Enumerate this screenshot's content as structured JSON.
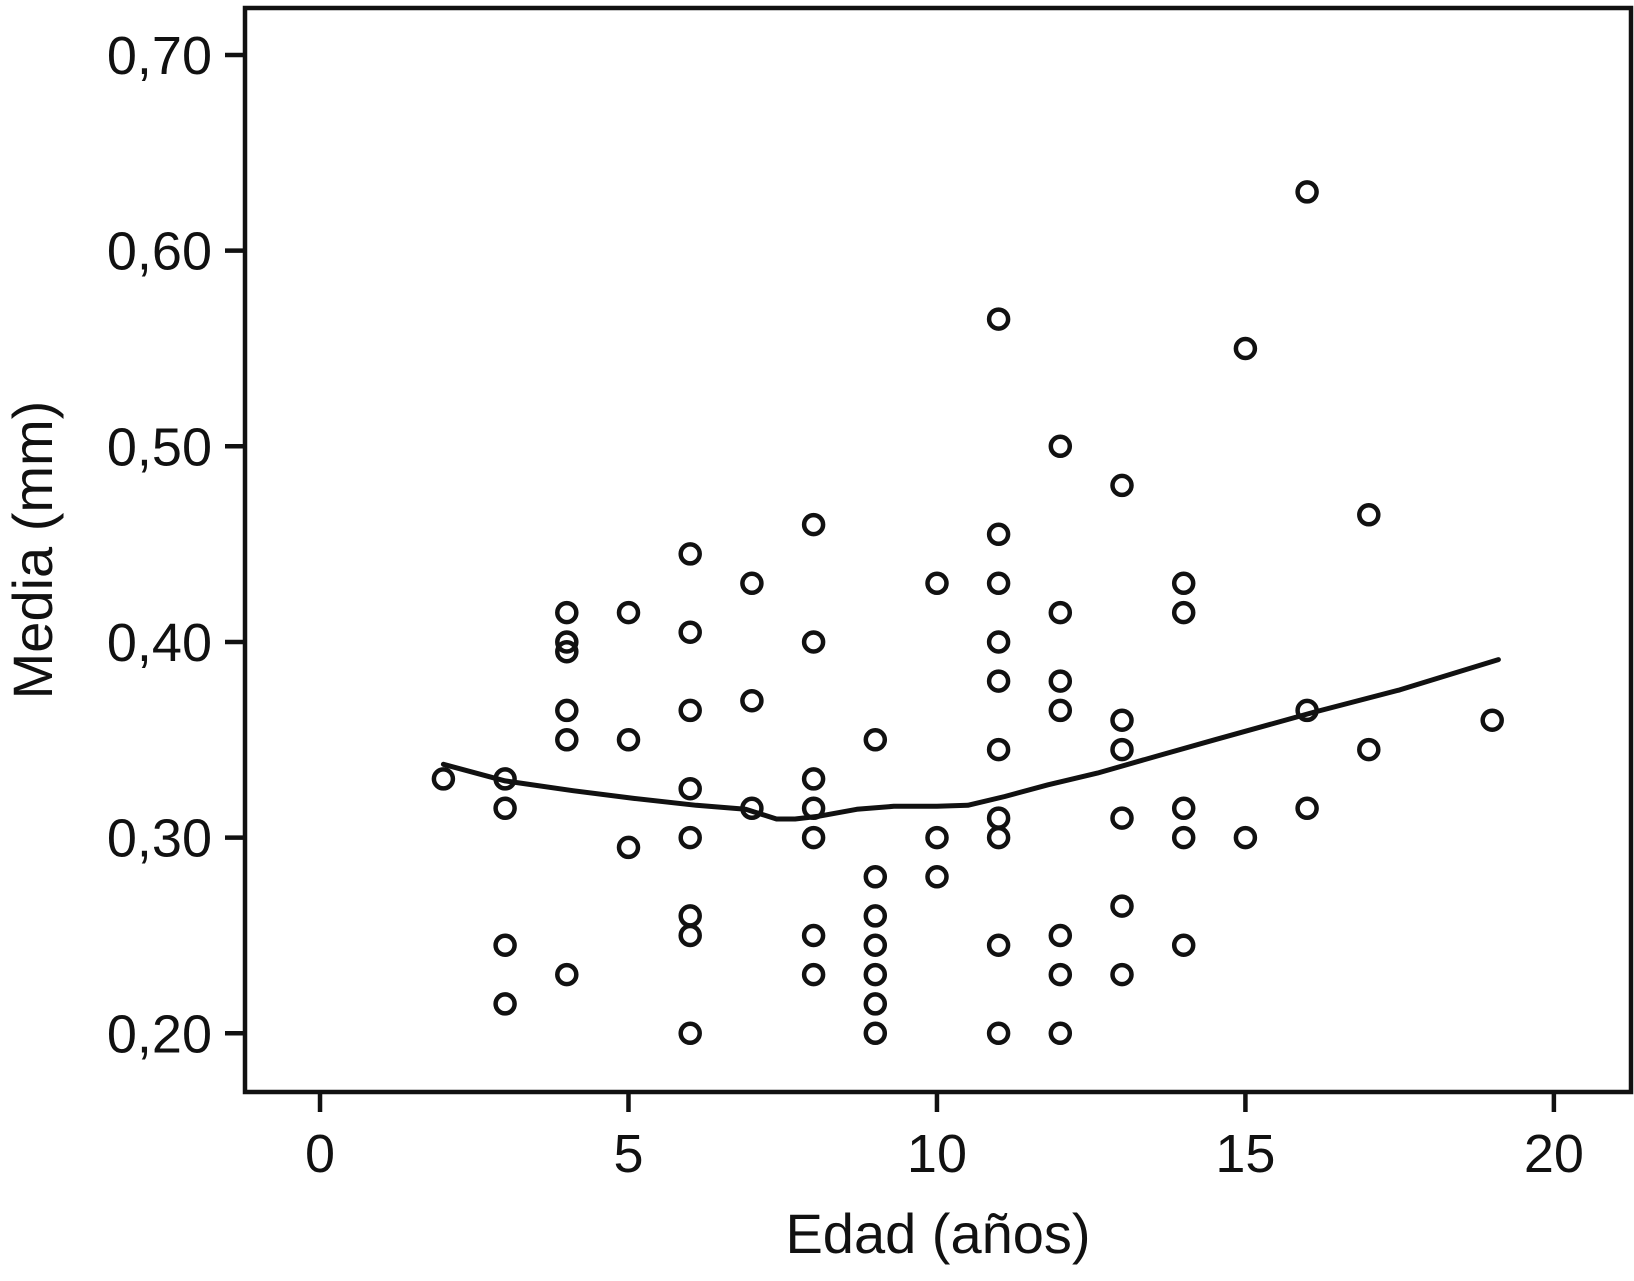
{
  "figure": {
    "background_color": "#ffffff",
    "ink_color": "#111111"
  },
  "chart_data": {
    "type": "scatter",
    "xlabel": "Edad (años)",
    "ylabel": "Media (mm)",
    "x_ticks": [
      0,
      5,
      10,
      15,
      20
    ],
    "x_tick_labels": [
      "0",
      "5",
      "10",
      "15",
      "20"
    ],
    "y_ticks": [
      0.2,
      0.3,
      0.4,
      0.5,
      0.6,
      0.7
    ],
    "y_tick_labels": [
      "0,20",
      "0,30",
      "0,40",
      "0,50",
      "0,60",
      "0,70"
    ],
    "xlim": [
      -1.216,
      21.25
    ],
    "ylim": [
      0.17,
      0.724
    ],
    "grid": false,
    "legend": "none",
    "marker": "open-circle",
    "points": [
      [
        2,
        0.33
      ],
      [
        3,
        0.33
      ],
      [
        3,
        0.315
      ],
      [
        3,
        0.245
      ],
      [
        3,
        0.215
      ],
      [
        4,
        0.415
      ],
      [
        4,
        0.4
      ],
      [
        4,
        0.395
      ],
      [
        4,
        0.365
      ],
      [
        4,
        0.35
      ],
      [
        4,
        0.23
      ],
      [
        5,
        0.415
      ],
      [
        5,
        0.35
      ],
      [
        5,
        0.295
      ],
      [
        6,
        0.445
      ],
      [
        6,
        0.405
      ],
      [
        6,
        0.365
      ],
      [
        6,
        0.325
      ],
      [
        6,
        0.3
      ],
      [
        6,
        0.26
      ],
      [
        6,
        0.25
      ],
      [
        6,
        0.2
      ],
      [
        7,
        0.43
      ],
      [
        7,
        0.37
      ],
      [
        7,
        0.315
      ],
      [
        8,
        0.46
      ],
      [
        8,
        0.4
      ],
      [
        8,
        0.33
      ],
      [
        8,
        0.315
      ],
      [
        8,
        0.3
      ],
      [
        8,
        0.25
      ],
      [
        8,
        0.23
      ],
      [
        9,
        0.35
      ],
      [
        9,
        0.28
      ],
      [
        9,
        0.26
      ],
      [
        9,
        0.245
      ],
      [
        9,
        0.23
      ],
      [
        9,
        0.215
      ],
      [
        9,
        0.2
      ],
      [
        10,
        0.43
      ],
      [
        10,
        0.3
      ],
      [
        10,
        0.28
      ],
      [
        11,
        0.565
      ],
      [
        11,
        0.455
      ],
      [
        11,
        0.43
      ],
      [
        11,
        0.4
      ],
      [
        11,
        0.38
      ],
      [
        11,
        0.345
      ],
      [
        11,
        0.31
      ],
      [
        11,
        0.3
      ],
      [
        11,
        0.245
      ],
      [
        11,
        0.2
      ],
      [
        12,
        0.5
      ],
      [
        12,
        0.415
      ],
      [
        12,
        0.38
      ],
      [
        12,
        0.365
      ],
      [
        12,
        0.25
      ],
      [
        12,
        0.23
      ],
      [
        12,
        0.2
      ],
      [
        13,
        0.48
      ],
      [
        13,
        0.36
      ],
      [
        13,
        0.345
      ],
      [
        13,
        0.31
      ],
      [
        13,
        0.265
      ],
      [
        13,
        0.23
      ],
      [
        14,
        0.43
      ],
      [
        14,
        0.415
      ],
      [
        14,
        0.315
      ],
      [
        14,
        0.3
      ],
      [
        14,
        0.245
      ],
      [
        15,
        0.55
      ],
      [
        15,
        0.3
      ],
      [
        16,
        0.63
      ],
      [
        16,
        0.365
      ],
      [
        16,
        0.315
      ],
      [
        17,
        0.465
      ],
      [
        17,
        0.345
      ],
      [
        19,
        0.36
      ]
    ],
    "trend_line": {
      "description": "smoothed fit line",
      "points": [
        [
          2.0,
          0.3375
        ],
        [
          3.0,
          0.329
        ],
        [
          4.1,
          0.324
        ],
        [
          5.1,
          0.32
        ],
        [
          6.1,
          0.3165
        ],
        [
          6.9,
          0.3145
        ],
        [
          7.4,
          0.3095
        ],
        [
          7.7,
          0.3095
        ],
        [
          8.1,
          0.311
        ],
        [
          8.7,
          0.3145
        ],
        [
          9.3,
          0.316
        ],
        [
          10.0,
          0.316
        ],
        [
          10.5,
          0.3165
        ],
        [
          11.1,
          0.321
        ],
        [
          11.8,
          0.327
        ],
        [
          12.6,
          0.333
        ],
        [
          13.6,
          0.342
        ],
        [
          14.5,
          0.35
        ],
        [
          16.1,
          0.364
        ],
        [
          17.5,
          0.3755
        ],
        [
          19.1,
          0.391
        ]
      ]
    }
  }
}
